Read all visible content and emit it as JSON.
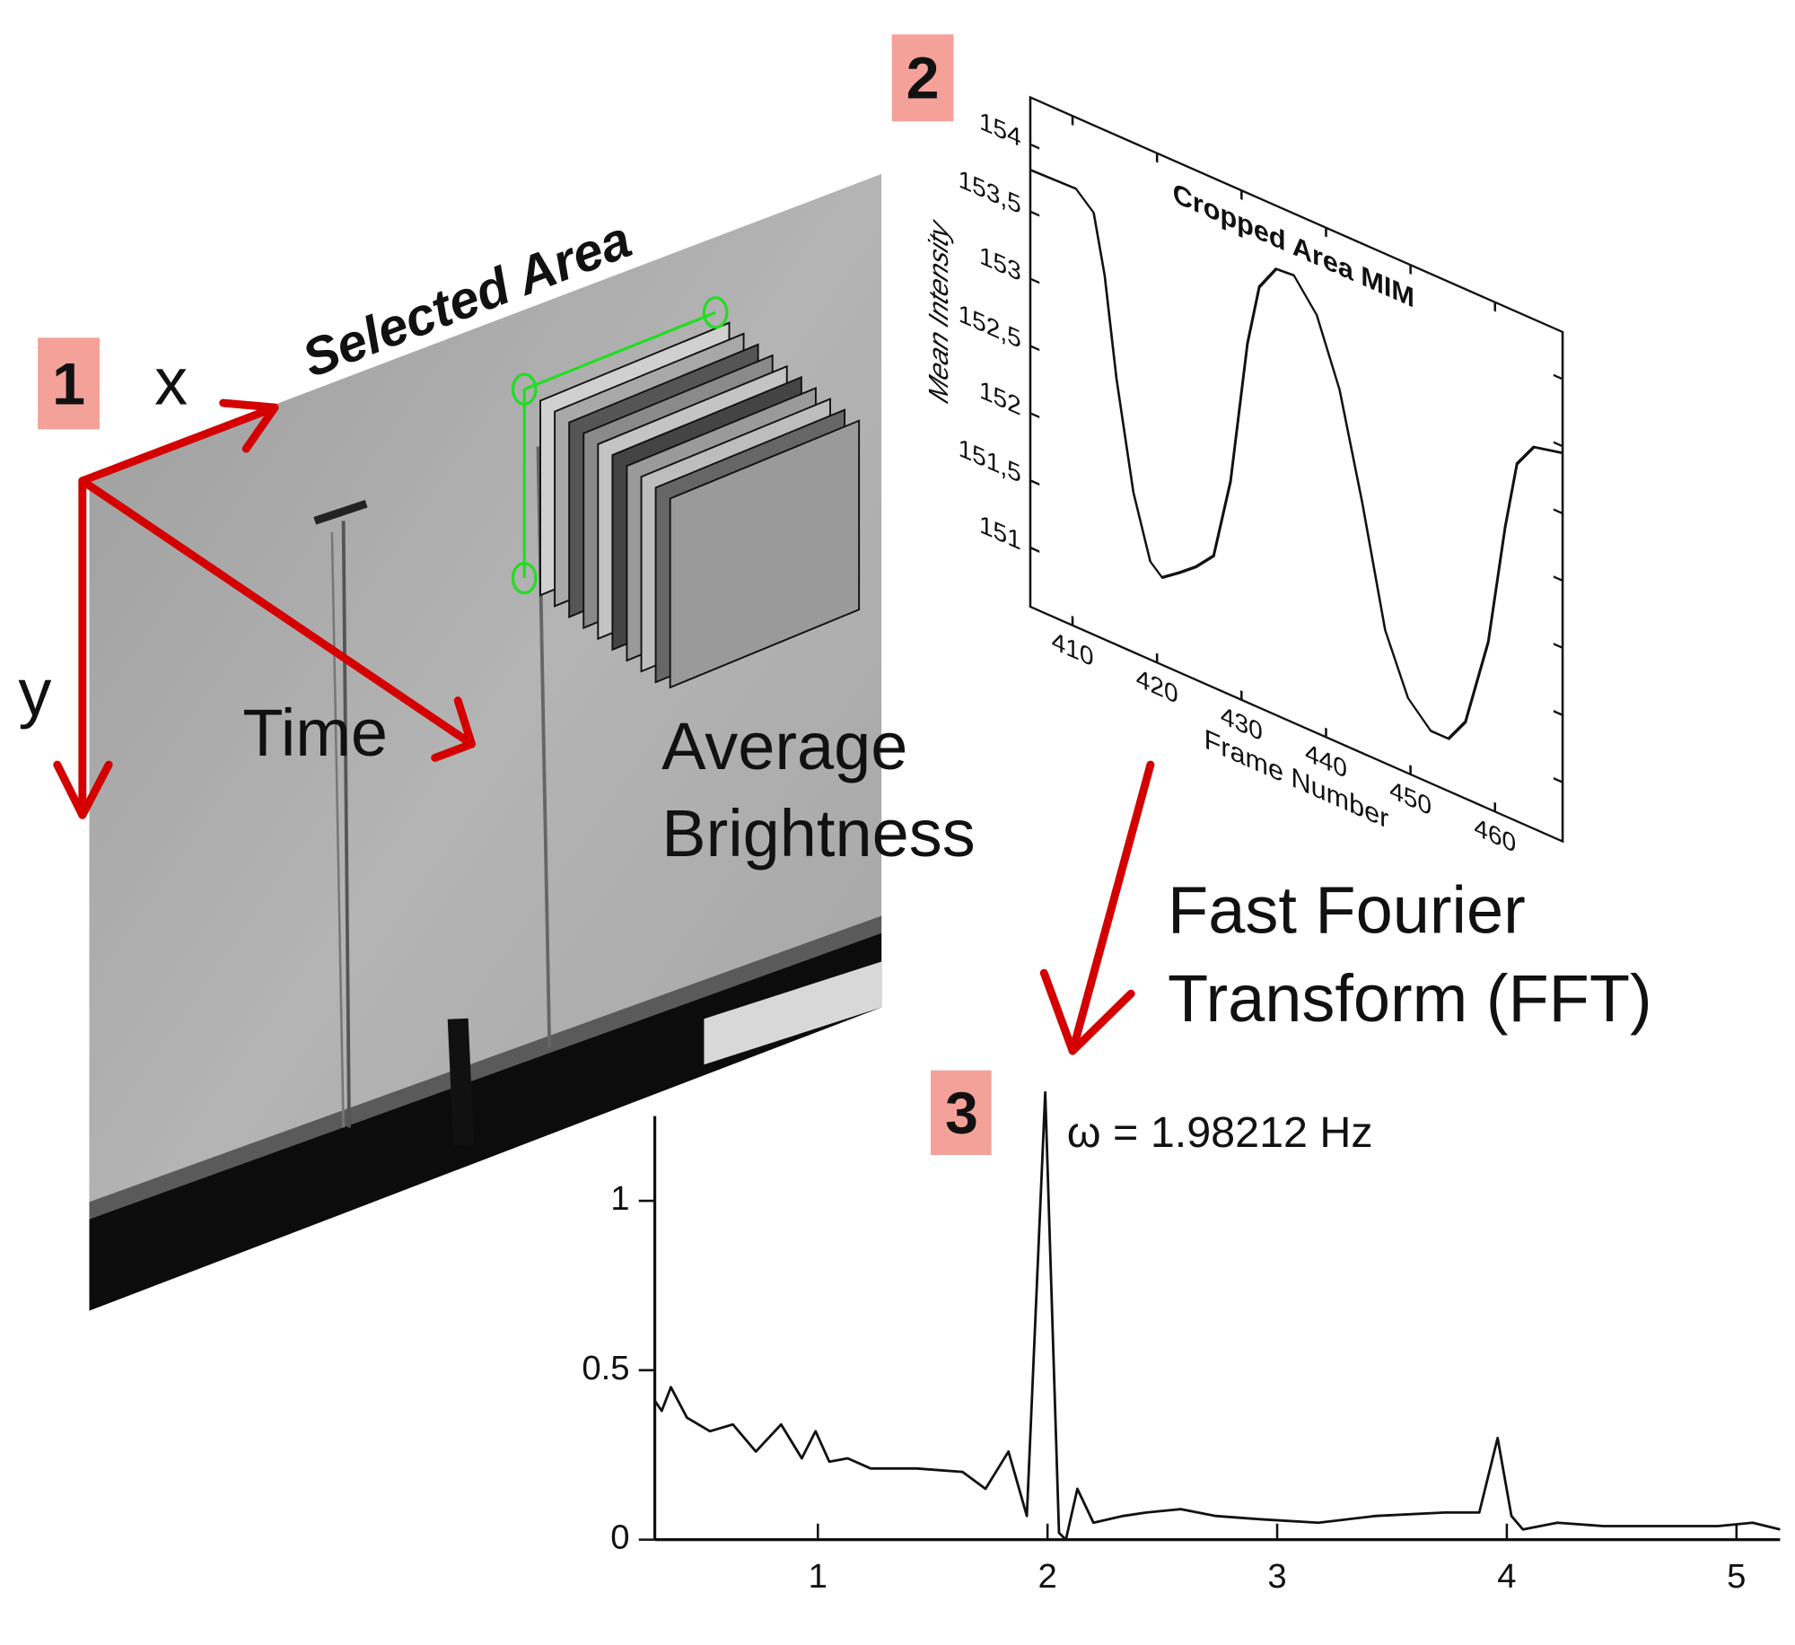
{
  "step_labels": [
    "1",
    "2",
    "3"
  ],
  "frame_panel": {
    "title": "Selected Area",
    "x_axis": "x",
    "y_axis": "y",
    "time_axis": "Time",
    "caption_lines": [
      "Average",
      "Brightness"
    ]
  },
  "transform_label": [
    "Fast Fourier",
    "Transform (FFT)"
  ],
  "chart_data": [
    {
      "type": "line",
      "title": "Cropped Area MIM",
      "x_label": "Frame Number",
      "y_label": "Mean Intensity",
      "color": "#111111",
      "x": [
        405,
        410.4,
        412.5,
        413.8,
        415.2,
        417.2,
        419.2,
        420.6,
        422.6,
        424.6,
        426.7,
        428.7,
        430.7,
        432.1,
        434.1,
        436.2,
        438.9,
        441.6,
        444.3,
        447.0,
        449.7,
        452.4,
        454.5,
        456.5,
        459.2,
        461.2,
        462.6,
        464.6,
        468
      ],
      "values": [
        153.81,
        153.82,
        153.7,
        153.27,
        152.54,
        151.75,
        151.29,
        151.21,
        151.3,
        151.4,
        151.54,
        152.15,
        153.23,
        153.69,
        153.88,
        153.89,
        153.67,
        153.19,
        152.42,
        151.55,
        151.12,
        150.95,
        150.95,
        151.13,
        151.8,
        152.71,
        153.22,
        153.4,
        153.45
      ],
      "xlim": [
        405,
        468
      ],
      "ylim": [
        150.56,
        154.35
      ],
      "xticks": [
        410,
        420,
        430,
        440,
        450,
        460
      ],
      "yticks": [
        151,
        {
          "value": 151.5,
          "label": "151,5"
        },
        152,
        {
          "value": 152.5,
          "label": "152,5"
        },
        153,
        {
          "value": 153.5,
          "label": "153,5"
        },
        154
      ]
    },
    {
      "type": "line",
      "annotation": "ω = 1.98212 Hz",
      "color": "#111111",
      "x": [
        0.29,
        0.32,
        0.36,
        0.43,
        0.53,
        0.63,
        0.73,
        0.84,
        0.93,
        0.99,
        1.05,
        1.13,
        1.23,
        1.43,
        1.63,
        1.73,
        1.83,
        1.91,
        1.99,
        2.05,
        2.08,
        2.13,
        2.2,
        2.33,
        2.43,
        2.58,
        2.73,
        2.93,
        3.18,
        3.43,
        3.73,
        3.88,
        3.96,
        4.02,
        4.07,
        4.22,
        4.42,
        4.67,
        4.92,
        5.07,
        5.19
      ],
      "values": [
        0.41,
        0.38,
        0.45,
        0.36,
        0.32,
        0.34,
        0.26,
        0.34,
        0.24,
        0.32,
        0.23,
        0.24,
        0.21,
        0.21,
        0.2,
        0.15,
        0.26,
        0.07,
        1.32,
        0.02,
        0,
        0.15,
        0.05,
        0.07,
        0.08,
        0.09,
        0.07,
        0.06,
        0.05,
        0.07,
        0.08,
        0.08,
        0.3,
        0.07,
        0.03,
        0.05,
        0.04,
        0.04,
        0.04,
        0.05,
        0.03
      ],
      "xlim": [
        0.29,
        5.19
      ],
      "ylim": [
        0,
        1.25
      ],
      "xticks": [
        1,
        2,
        3,
        4,
        5
      ],
      "yticks": [
        0,
        0.5,
        1
      ]
    }
  ]
}
